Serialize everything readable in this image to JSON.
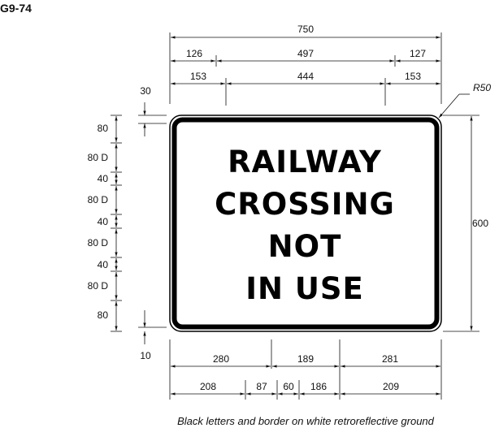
{
  "sign_code": "G9-74",
  "sign_lines": [
    "RAILWAY",
    "CROSSING",
    "NOT",
    "IN USE"
  ],
  "top_dims": {
    "overall": "750",
    "row2": [
      "126",
      "497",
      "127"
    ],
    "row3": [
      "153",
      "444",
      "153"
    ]
  },
  "corner_radius": "R50",
  "height_dim": "600",
  "left_dims": {
    "top_margin": "30",
    "stack": [
      "80",
      "80 D",
      "40",
      "80 D",
      "40",
      "80 D",
      "40",
      "80 D",
      "80"
    ],
    "bottom_margin": "10"
  },
  "bottom_dims": {
    "row1": [
      "280",
      "189",
      "281"
    ],
    "row2": [
      "208",
      "87",
      "60",
      "186",
      "209"
    ]
  },
  "caption": "Black letters and border on white retroreflective ground"
}
